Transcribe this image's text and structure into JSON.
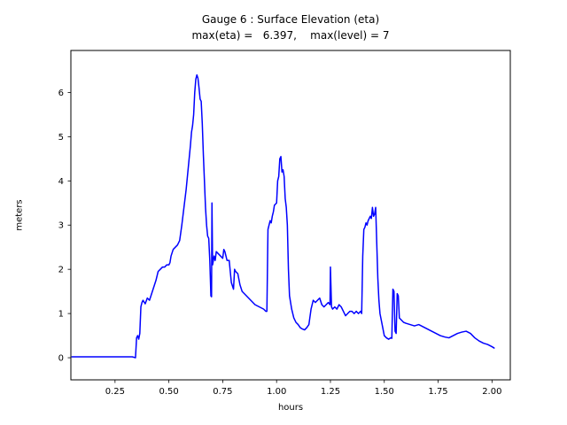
{
  "title": {
    "line1": "Gauge 6 : Surface Elevation (eta)",
    "line2": "max(eta) =   6.397,    max(level) = 7"
  },
  "chart_data": {
    "type": "line",
    "title": "Gauge 6 : Surface Elevation (eta)",
    "subtitle": "max(eta) =   6.397,    max(level) = 7",
    "xlabel": "hours",
    "ylabel": "meters",
    "max_eta": 6.397,
    "max_level": 7,
    "xlim": [
      0.045,
      2.085
    ],
    "ylim": [
      -0.5,
      6.95
    ],
    "xticks": [
      0.25,
      0.5,
      0.75,
      1.0,
      1.25,
      1.5,
      1.75,
      2.0
    ],
    "xtick_labels": [
      "0.25",
      "0.50",
      "0.75",
      "1.00",
      "1.25",
      "1.50",
      "1.75",
      "2.00"
    ],
    "yticks": [
      0,
      1,
      2,
      3,
      4,
      5,
      6
    ],
    "ytick_labels": [
      "0",
      "1",
      "2",
      "3",
      "4",
      "5",
      "6"
    ],
    "grid": false,
    "legend": "none",
    "line_color": "#0000ff",
    "line_width": 1.5,
    "series": [
      {
        "name": "eta",
        "x": [
          0.05,
          0.1,
          0.15,
          0.2,
          0.25,
          0.3,
          0.33,
          0.345,
          0.35,
          0.355,
          0.36,
          0.365,
          0.37,
          0.375,
          0.38,
          0.39,
          0.4,
          0.41,
          0.42,
          0.43,
          0.44,
          0.45,
          0.46,
          0.47,
          0.48,
          0.49,
          0.5,
          0.505,
          0.51,
          0.52,
          0.53,
          0.54,
          0.55,
          0.56,
          0.57,
          0.58,
          0.59,
          0.6,
          0.605,
          0.61,
          0.615,
          0.62,
          0.625,
          0.63,
          0.635,
          0.64,
          0.645,
          0.65,
          0.655,
          0.66,
          0.665,
          0.67,
          0.675,
          0.68,
          0.685,
          0.69,
          0.695,
          0.698,
          0.7,
          0.703,
          0.71,
          0.715,
          0.72,
          0.73,
          0.74,
          0.75,
          0.755,
          0.76,
          0.77,
          0.78,
          0.79,
          0.8,
          0.805,
          0.81,
          0.82,
          0.83,
          0.84,
          0.85,
          0.86,
          0.87,
          0.88,
          0.89,
          0.9,
          0.92,
          0.94,
          0.95,
          0.955,
          0.96,
          0.965,
          0.97,
          0.975,
          0.98,
          0.985,
          0.99,
          1.0,
          1.005,
          1.01,
          1.015,
          1.02,
          1.025,
          1.03,
          1.035,
          1.04,
          1.045,
          1.05,
          1.055,
          1.06,
          1.07,
          1.08,
          1.09,
          1.1,
          1.11,
          1.12,
          1.13,
          1.14,
          1.15,
          1.16,
          1.17,
          1.18,
          1.19,
          1.2,
          1.21,
          1.22,
          1.23,
          1.24,
          1.248,
          1.25,
          1.255,
          1.26,
          1.27,
          1.28,
          1.29,
          1.3,
          1.31,
          1.32,
          1.33,
          1.34,
          1.35,
          1.36,
          1.37,
          1.38,
          1.39,
          1.395,
          1.4,
          1.405,
          1.41,
          1.415,
          1.42,
          1.425,
          1.43,
          1.435,
          1.44,
          1.445,
          1.45,
          1.455,
          1.46,
          1.465,
          1.47,
          1.475,
          1.48,
          1.49,
          1.5,
          1.51,
          1.52,
          1.53,
          1.535,
          1.54,
          1.545,
          1.55,
          1.555,
          1.56,
          1.565,
          1.57,
          1.58,
          1.59,
          1.6,
          1.62,
          1.64,
          1.66,
          1.68,
          1.7,
          1.72,
          1.74,
          1.76,
          1.78,
          1.8,
          1.82,
          1.84,
          1.86,
          1.88,
          1.9,
          1.92,
          1.94,
          1.96,
          1.98,
          2.0,
          2.01
        ],
        "y": [
          0.02,
          0.02,
          0.02,
          0.02,
          0.02,
          0.02,
          0.02,
          0.0,
          0.45,
          0.5,
          0.42,
          0.55,
          1.15,
          1.25,
          1.3,
          1.22,
          1.35,
          1.3,
          1.45,
          1.6,
          1.75,
          1.95,
          2.0,
          2.05,
          2.05,
          2.1,
          2.1,
          2.15,
          2.3,
          2.45,
          2.5,
          2.55,
          2.65,
          3.0,
          3.4,
          3.8,
          4.3,
          4.8,
          5.1,
          5.25,
          5.5,
          6.0,
          6.3,
          6.397,
          6.32,
          6.1,
          5.85,
          5.8,
          5.3,
          4.6,
          4.0,
          3.4,
          3.0,
          2.75,
          2.7,
          2.2,
          1.4,
          1.38,
          3.5,
          2.1,
          2.3,
          2.2,
          2.4,
          2.35,
          2.3,
          2.25,
          2.45,
          2.4,
          2.2,
          2.2,
          1.7,
          1.55,
          2.0,
          1.95,
          1.9,
          1.65,
          1.5,
          1.45,
          1.4,
          1.35,
          1.3,
          1.25,
          1.2,
          1.15,
          1.1,
          1.05,
          1.05,
          2.9,
          3.0,
          3.1,
          3.05,
          3.2,
          3.3,
          3.45,
          3.5,
          4.0,
          4.1,
          4.5,
          4.55,
          4.2,
          4.25,
          4.1,
          3.6,
          3.4,
          3.0,
          2.0,
          1.4,
          1.1,
          0.9,
          0.8,
          0.75,
          0.68,
          0.65,
          0.63,
          0.68,
          0.75,
          1.1,
          1.3,
          1.25,
          1.3,
          1.35,
          1.2,
          1.15,
          1.2,
          1.25,
          1.2,
          2.05,
          1.15,
          1.1,
          1.15,
          1.1,
          1.2,
          1.15,
          1.05,
          0.95,
          1.0,
          1.05,
          1.05,
          1.0,
          1.05,
          1.0,
          1.05,
          1.0,
          2.3,
          2.9,
          2.95,
          3.05,
          3.0,
          3.1,
          3.15,
          3.2,
          3.15,
          3.4,
          3.2,
          3.25,
          3.4,
          2.6,
          1.8,
          1.3,
          1.0,
          0.75,
          0.5,
          0.45,
          0.42,
          0.45,
          0.44,
          1.55,
          1.5,
          0.6,
          0.55,
          1.45,
          1.4,
          0.9,
          0.85,
          0.8,
          0.78,
          0.75,
          0.72,
          0.75,
          0.7,
          0.65,
          0.6,
          0.55,
          0.5,
          0.47,
          0.45,
          0.5,
          0.55,
          0.58,
          0.6,
          0.55,
          0.45,
          0.38,
          0.33,
          0.3,
          0.25,
          0.22
        ]
      }
    ]
  }
}
